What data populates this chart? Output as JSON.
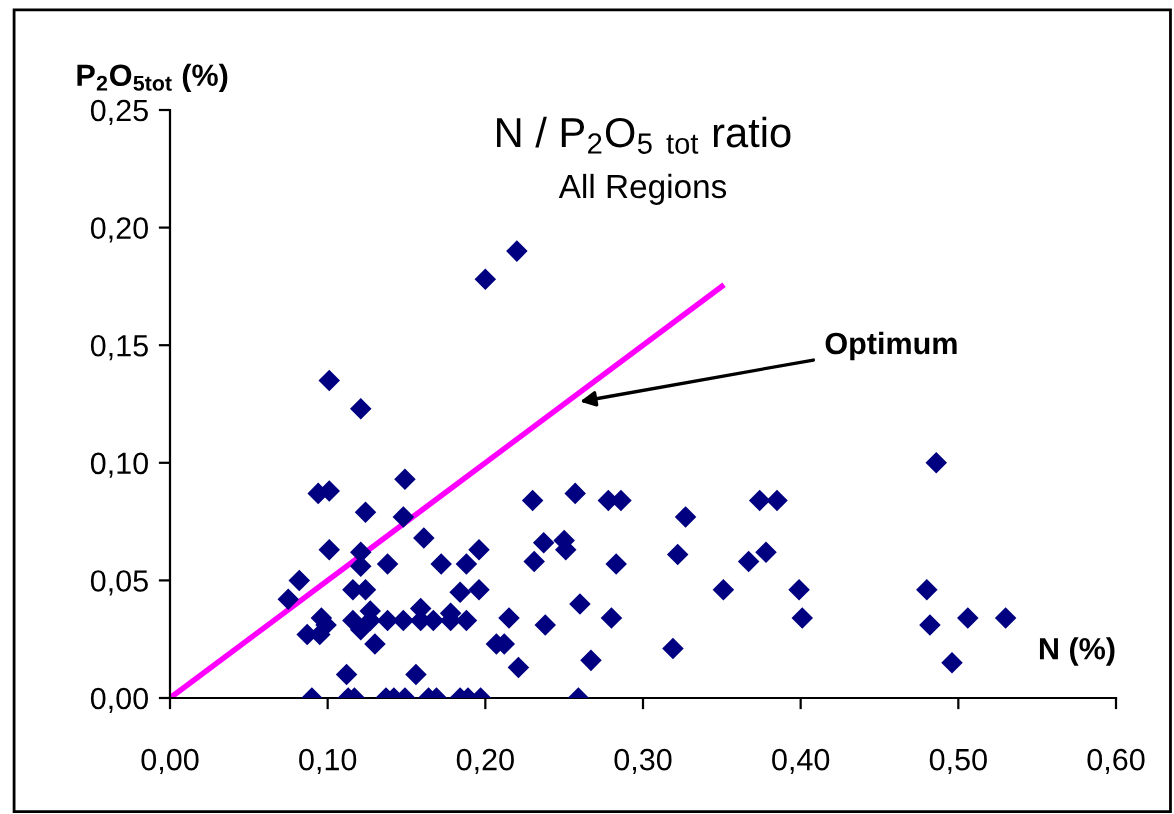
{
  "chart_data": {
    "type": "scatter",
    "title": "N / P$_{2}$O$_{5}$ $_{tot}$ ratio",
    "subtitle": "All Regions",
    "xlabel": "N (%)",
    "ylabel": "P$_{2}$O$_{5tot}$ (%)",
    "xlim": [
      0,
      0.6
    ],
    "ylim": [
      0,
      0.25
    ],
    "xticks": [
      {
        "value": 0,
        "label": "0,00"
      },
      {
        "value": 0.1,
        "label": "0,10"
      },
      {
        "value": 0.2,
        "label": "0,20"
      },
      {
        "value": 0.3,
        "label": "0,30"
      },
      {
        "value": 0.4,
        "label": "0,40"
      },
      {
        "value": 0.5,
        "label": "0,50"
      },
      {
        "value": 0.6,
        "label": "0,60"
      }
    ],
    "yticks": [
      {
        "value": 0,
        "label": "0,00"
      },
      {
        "value": 0.05,
        "label": "0,05"
      },
      {
        "value": 0.1,
        "label": "0,10"
      },
      {
        "value": 0.15,
        "label": "0,15"
      },
      {
        "value": 0.2,
        "label": "0,20"
      },
      {
        "value": 0.25,
        "label": "0,25"
      }
    ],
    "grid": false,
    "legend": false,
    "marker": "diamond",
    "annotations": [
      {
        "text": "Optimum",
        "x": 0.26,
        "y": 0.126
      }
    ],
    "series": [
      {
        "color": "#000080",
        "x": [
          0.2,
          0.22,
          0.101,
          0.121,
          0.149,
          0.094,
          0.101,
          0.124,
          0.148,
          0.161,
          0.101,
          0.121,
          0.121,
          0.138,
          0.172,
          0.188,
          0.196,
          0.082,
          0.075,
          0.116,
          0.124,
          0.184,
          0.196,
          0.096,
          0.087,
          0.095,
          0.099,
          0.116,
          0.127,
          0.138,
          0.148,
          0.159,
          0.167,
          0.178,
          0.188,
          0.127,
          0.159,
          0.178,
          0.121,
          0.13,
          0.112,
          0.156,
          0.207,
          0.09,
          0.113,
          0.117,
          0.137,
          0.142,
          0.149,
          0.164,
          0.169,
          0.184,
          0.189,
          0.197,
          0.23,
          0.257,
          0.278,
          0.286,
          0.327,
          0.237,
          0.25,
          0.251,
          0.231,
          0.283,
          0.322,
          0.26,
          0.215,
          0.238,
          0.28,
          0.351,
          0.367,
          0.212,
          0.221,
          0.267,
          0.319,
          0.259,
          0.374,
          0.385,
          0.378,
          0.399,
          0.401,
          0.486,
          0.48,
          0.482,
          0.506,
          0.53,
          0.496
        ],
        "values": [
          0.178,
          0.19,
          0.135,
          0.123,
          0.093,
          0.087,
          0.088,
          0.079,
          0.077,
          0.068,
          0.063,
          0.062,
          0.056,
          0.057,
          0.057,
          0.057,
          0.063,
          0.05,
          0.042,
          0.046,
          0.046,
          0.045,
          0.046,
          0.034,
          0.027,
          0.027,
          0.031,
          0.033,
          0.033,
          0.033,
          0.033,
          0.033,
          0.033,
          0.033,
          0.033,
          0.037,
          0.038,
          0.036,
          0.029,
          0.023,
          0.01,
          0.01,
          0.023,
          0,
          0,
          0,
          0,
          0,
          0,
          0,
          0,
          0,
          0,
          0,
          0.084,
          0.087,
          0.084,
          0.084,
          0.077,
          0.066,
          0.067,
          0.063,
          0.058,
          0.057,
          0.061,
          0.04,
          0.034,
          0.031,
          0.034,
          0.046,
          0.058,
          0.023,
          0.013,
          0.016,
          0.021,
          0,
          0.084,
          0.084,
          0.062,
          0.046,
          0.034,
          0.1,
          0.046,
          0.031,
          0.034,
          0.034,
          0.015
        ]
      },
      {
        "type": "line",
        "marker": "none",
        "color": "#ff00ff",
        "x": [
          0,
          0.35
        ],
        "values": [
          0,
          0.175
        ]
      }
    ]
  }
}
